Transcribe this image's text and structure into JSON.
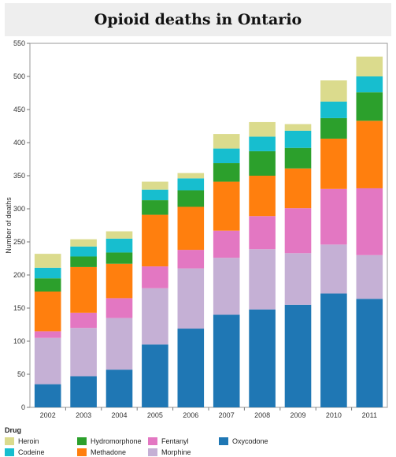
{
  "title": "Opioid deaths in Ontario",
  "chart_data": {
    "type": "bar",
    "stacked": true,
    "title": "Opioid deaths in Ontario",
    "xlabel": "",
    "ylabel": "Number of deaths",
    "ylim": [
      0,
      550
    ],
    "yticks": [
      0,
      50,
      100,
      150,
      200,
      250,
      300,
      350,
      400,
      450,
      500,
      550
    ],
    "grid": false,
    "legend_title": "Drug",
    "legend_position": "bottom",
    "categories": [
      "2002",
      "2003",
      "2004",
      "2005",
      "2006",
      "2007",
      "2008",
      "2009",
      "2010",
      "2011"
    ],
    "series": [
      {
        "name": "Oxycodone",
        "color": "#1f77b4",
        "values": [
          35,
          47,
          57,
          95,
          119,
          140,
          148,
          155,
          172,
          164
        ]
      },
      {
        "name": "Morphine",
        "color": "#c5b0d5",
        "values": [
          70,
          73,
          78,
          85,
          91,
          86,
          91,
          78,
          74,
          66
        ]
      },
      {
        "name": "Fentanyl",
        "color": "#e377c2",
        "values": [
          10,
          23,
          30,
          33,
          28,
          41,
          50,
          68,
          84,
          101
        ]
      },
      {
        "name": "Methadone",
        "color": "#ff7f0e",
        "values": [
          60,
          69,
          52,
          78,
          65,
          74,
          61,
          60,
          76,
          102
        ]
      },
      {
        "name": "Hydromorphone",
        "color": "#2ca02c",
        "values": [
          20,
          16,
          17,
          22,
          25,
          28,
          37,
          31,
          31,
          43
        ]
      },
      {
        "name": "Codeine",
        "color": "#17becf",
        "values": [
          16,
          15,
          21,
          16,
          18,
          22,
          22,
          26,
          25,
          24
        ]
      },
      {
        "name": "Heroin",
        "color": "#dbdb8d",
        "values": [
          21,
          11,
          11,
          12,
          8,
          22,
          22,
          10,
          32,
          30
        ]
      }
    ]
  },
  "legend_items": [
    {
      "name": "Heroin",
      "color": "#dbdb8d"
    },
    {
      "name": "Codeine",
      "color": "#17becf"
    },
    {
      "name": "Hydromorphone",
      "color": "#2ca02c"
    },
    {
      "name": "Methadone",
      "color": "#ff7f0e"
    },
    {
      "name": "Fentanyl",
      "color": "#e377c2"
    },
    {
      "name": "Morphine",
      "color": "#c5b0d5"
    },
    {
      "name": "Oxycodone",
      "color": "#1f77b4"
    }
  ]
}
